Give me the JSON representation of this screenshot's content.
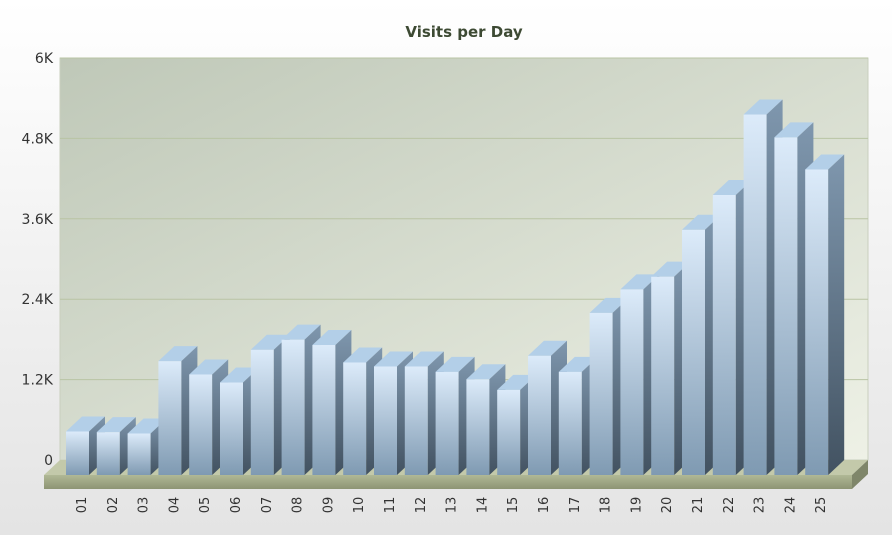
{
  "chart_data": {
    "type": "bar",
    "title": "Visits per Day",
    "xlabel": "",
    "ylabel": "",
    "ylim": [
      0,
      6000
    ],
    "yticks": [
      0,
      1200,
      2400,
      3600,
      4800,
      6000
    ],
    "ytick_labels": [
      "0",
      "1.2K",
      "2.4K",
      "3.6K",
      "4.8K",
      "6K"
    ],
    "grid": true,
    "legend": "none",
    "categories": [
      "01",
      "02",
      "03",
      "04",
      "05",
      "06",
      "07",
      "08",
      "09",
      "10",
      "11",
      "12",
      "13",
      "14",
      "15",
      "16",
      "17",
      "18",
      "19",
      "20",
      "21",
      "22",
      "23",
      "24",
      "25"
    ],
    "values": [
      650,
      640,
      620,
      1700,
      1500,
      1380,
      1870,
      2020,
      1940,
      1680,
      1620,
      1620,
      1540,
      1430,
      1270,
      1780,
      1540,
      2420,
      2770,
      2960,
      3660,
      4180,
      5380,
      5040,
      4560
    ],
    "colors": {
      "bar_front_top": "#dcebfa",
      "bar_front_bottom": "#7f9ab2",
      "bar_top": "#b3cfe8",
      "bar_side_top": "#7f97ae",
      "bar_side_bottom": "#425261",
      "wall_start": "#bfc8b8",
      "wall_end": "#eef1e6",
      "floor": "#c3c9aa",
      "grid": "#b9c4a4"
    }
  }
}
